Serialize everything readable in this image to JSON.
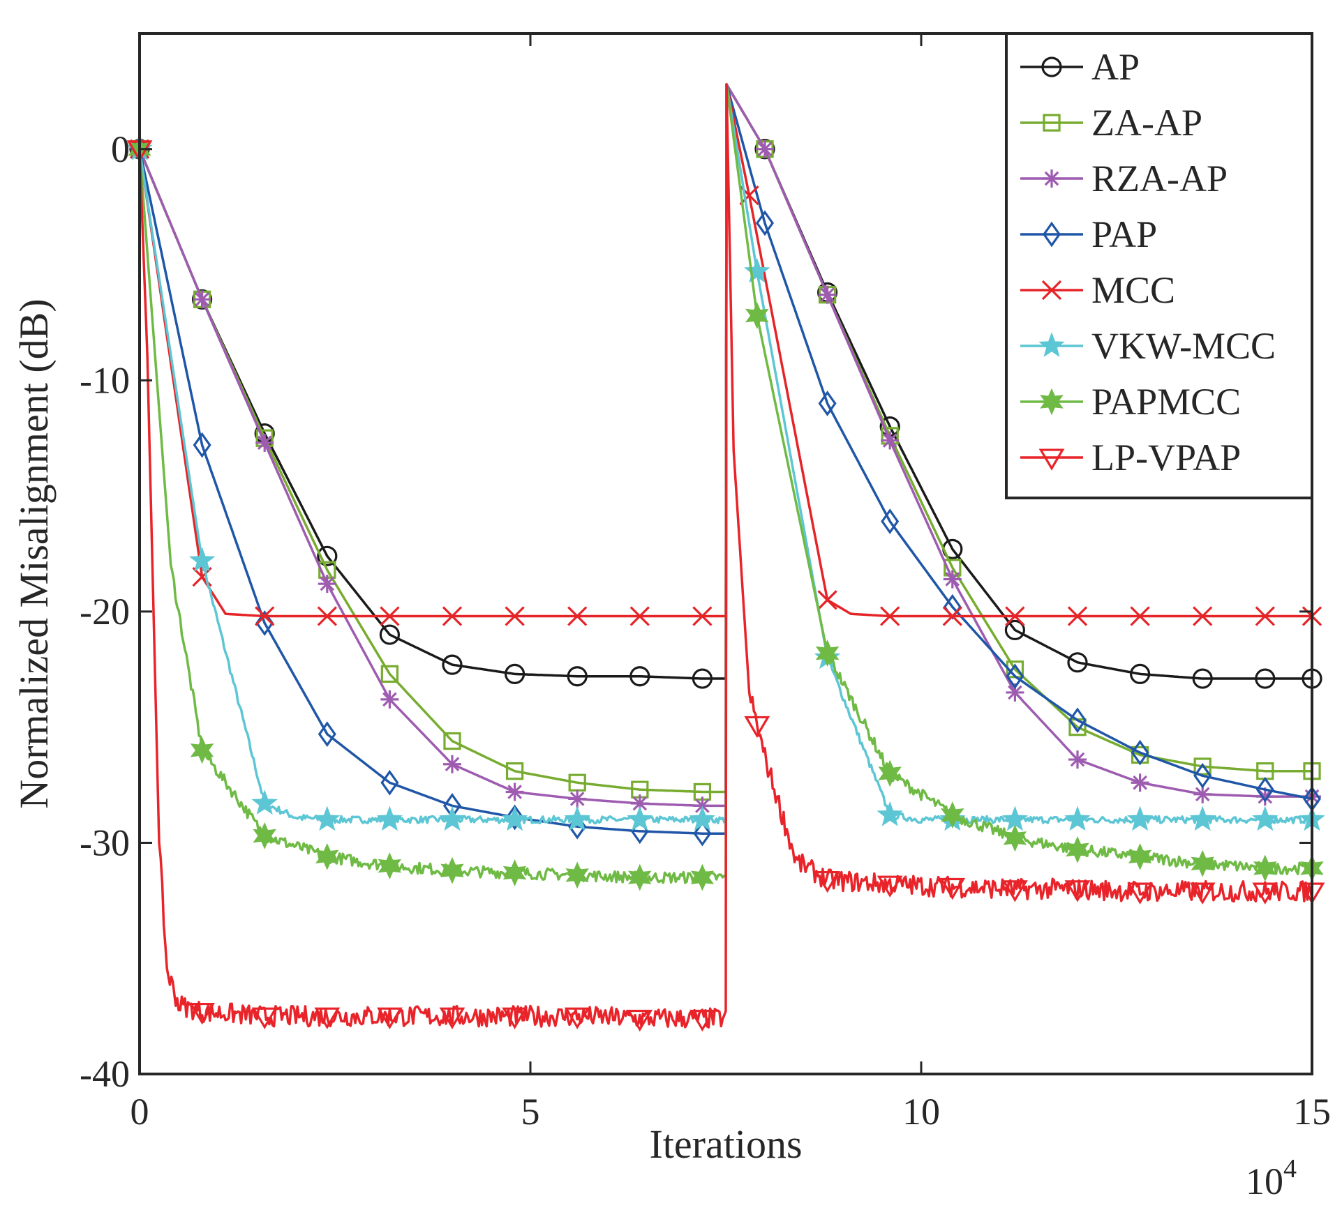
{
  "chart_data": {
    "type": "line",
    "title": "",
    "xlabel": "Iterations",
    "ylabel": "Normalized Misalignment (dB)",
    "x_exponent_base": "10",
    "x_exponent_power": "4",
    "xlim": [
      0,
      15
    ],
    "ylim": [
      -40,
      5
    ],
    "xticks": [
      0,
      5,
      10,
      15
    ],
    "xtick_labels": [
      "0",
      "5",
      "10",
      "15"
    ],
    "yticks": [
      0,
      -10,
      -20,
      -30,
      -40
    ],
    "ytick_labels": [
      "0",
      "-10",
      "-20",
      "-30",
      "-40"
    ],
    "grid": false,
    "legend_position": "top-right",
    "series": [
      {
        "name": "AP",
        "color": "#1a1a1a",
        "marker": "circle",
        "x": [
          0,
          0.8,
          1.6,
          2.4,
          3.2,
          4.0,
          4.8,
          5.6,
          6.4,
          7.2,
          7.5,
          7.51,
          8.0,
          8.8,
          9.6,
          10.4,
          11.2,
          12.0,
          12.8,
          13.6,
          14.4,
          15.0
        ],
        "y": [
          0,
          -6.5,
          -12.3,
          -17.6,
          -21.0,
          -22.3,
          -22.7,
          -22.8,
          -22.8,
          -22.9,
          -22.9,
          2.8,
          0,
          -6.2,
          -12.0,
          -17.3,
          -20.8,
          -22.2,
          -22.7,
          -22.9,
          -22.9,
          -22.9
        ],
        "marker_x": [
          0,
          0.8,
          1.6,
          2.4,
          3.2,
          4.0,
          4.8,
          5.6,
          6.4,
          7.2,
          8.0,
          8.8,
          9.6,
          10.4,
          11.2,
          12.0,
          12.8,
          13.6,
          14.4,
          15.0
        ],
        "noise": 0
      },
      {
        "name": "ZA-AP",
        "color": "#77ac30",
        "marker": "square",
        "x": [
          0,
          0.8,
          1.6,
          2.4,
          3.2,
          4.0,
          4.8,
          5.6,
          6.4,
          7.2,
          7.5,
          7.51,
          8.0,
          8.8,
          9.6,
          10.4,
          11.2,
          12.0,
          12.8,
          13.6,
          14.4,
          15.0
        ],
        "y": [
          0,
          -6.5,
          -12.5,
          -18.2,
          -22.7,
          -25.6,
          -26.9,
          -27.4,
          -27.7,
          -27.8,
          -27.8,
          2.8,
          0,
          -6.3,
          -12.4,
          -18.1,
          -22.5,
          -25.0,
          -26.2,
          -26.7,
          -26.9,
          -26.9
        ],
        "marker_x": [
          0,
          0.8,
          1.6,
          2.4,
          3.2,
          4.0,
          4.8,
          5.6,
          6.4,
          7.2,
          8.0,
          8.8,
          9.6,
          10.4,
          11.2,
          12.0,
          12.8,
          13.6,
          14.4,
          15.0
        ],
        "noise": 0
      },
      {
        "name": "RZA-AP",
        "color": "#9e5cb0",
        "marker": "asterisk",
        "x": [
          0,
          0.8,
          1.6,
          2.4,
          3.2,
          4.0,
          4.8,
          5.6,
          6.4,
          7.2,
          7.5,
          7.51,
          8.0,
          8.8,
          9.6,
          10.4,
          11.2,
          12.0,
          12.8,
          13.6,
          14.4,
          15.0
        ],
        "y": [
          0,
          -6.5,
          -12.7,
          -18.8,
          -23.8,
          -26.6,
          -27.8,
          -28.1,
          -28.3,
          -28.4,
          -28.4,
          2.8,
          0,
          -6.3,
          -12.6,
          -18.6,
          -23.5,
          -26.4,
          -27.4,
          -27.9,
          -28.0,
          -28.0
        ],
        "marker_x": [
          0,
          0.8,
          1.6,
          2.4,
          3.2,
          4.0,
          4.8,
          5.6,
          6.4,
          7.2,
          8.0,
          8.8,
          9.6,
          10.4,
          11.2,
          12.0,
          12.8,
          13.6,
          14.4,
          15.0
        ],
        "noise": 0
      },
      {
        "name": "PAP",
        "color": "#1f56a7",
        "marker": "diamond",
        "x": [
          0,
          0.8,
          1.6,
          2.4,
          3.2,
          4.0,
          4.8,
          5.6,
          6.4,
          7.2,
          7.5,
          7.51,
          8.0,
          8.8,
          9.6,
          10.4,
          11.2,
          12.0,
          12.8,
          13.6,
          14.4,
          15.0
        ],
        "y": [
          0,
          -12.8,
          -20.5,
          -25.3,
          -27.4,
          -28.4,
          -28.9,
          -29.3,
          -29.5,
          -29.6,
          -29.6,
          2.8,
          -3.2,
          -11.0,
          -16.1,
          -19.8,
          -22.8,
          -24.7,
          -26.1,
          -27.1,
          -27.7,
          -28.1
        ],
        "marker_x": [
          0,
          0.8,
          1.6,
          2.4,
          3.2,
          4.0,
          4.8,
          5.6,
          6.4,
          7.2,
          8.0,
          8.8,
          9.6,
          10.4,
          11.2,
          12.0,
          12.8,
          13.6,
          14.4,
          15.0
        ],
        "noise": 0
      },
      {
        "name": "MCC",
        "color": "#e52428",
        "marker": "x",
        "x": [
          0,
          0.8,
          1.1,
          1.6,
          2.4,
          3.2,
          4.0,
          4.8,
          5.6,
          6.4,
          7.2,
          7.5,
          7.51,
          7.8,
          8.8,
          9.1,
          9.6,
          10.4,
          11.2,
          12.0,
          12.8,
          13.6,
          14.4,
          15.0
        ],
        "y": [
          0,
          -18.5,
          -20.1,
          -20.2,
          -20.2,
          -20.2,
          -20.2,
          -20.2,
          -20.2,
          -20.2,
          -20.2,
          -20.2,
          2.8,
          -2.0,
          -19.5,
          -20.1,
          -20.2,
          -20.2,
          -20.2,
          -20.2,
          -20.2,
          -20.2,
          -20.2,
          -20.2
        ],
        "marker_x": [
          0,
          0.8,
          1.6,
          2.4,
          3.2,
          4.0,
          4.8,
          5.6,
          6.4,
          7.2,
          7.8,
          8.8,
          9.6,
          10.4,
          11.2,
          12.0,
          12.8,
          13.6,
          14.4,
          15.0
        ],
        "noise": 0
      },
      {
        "name": "VKW-MCC",
        "color": "#5cc6d4",
        "marker": "star5",
        "x": [
          0,
          0.8,
          1.6,
          2.0,
          2.4,
          3.2,
          4.0,
          4.8,
          5.6,
          6.4,
          7.2,
          7.5,
          7.51,
          7.9,
          8.8,
          9.6,
          10.0,
          10.4,
          11.2,
          12.0,
          12.8,
          13.6,
          14.4,
          15.0
        ],
        "y": [
          0,
          -17.8,
          -28.3,
          -28.9,
          -29.0,
          -29.0,
          -29.0,
          -29.0,
          -29.0,
          -29.0,
          -29.0,
          -29.0,
          2.8,
          -5.3,
          -22.0,
          -28.8,
          -29.0,
          -29.0,
          -29.0,
          -29.0,
          -29.0,
          -29.0,
          -29.0,
          -29.0
        ],
        "marker_x": [
          0,
          0.8,
          1.6,
          2.4,
          3.2,
          4.0,
          4.8,
          5.6,
          6.4,
          7.2,
          7.9,
          8.8,
          9.6,
          10.4,
          11.2,
          12.0,
          12.8,
          13.6,
          14.4,
          15.0
        ],
        "noise": 0.15
      },
      {
        "name": "PAPMCC",
        "color": "#6fba45",
        "marker": "star6",
        "x": [
          0,
          0.4,
          0.8,
          1.6,
          2.4,
          3.2,
          4.0,
          4.8,
          5.6,
          6.4,
          7.2,
          7.5,
          7.51,
          7.9,
          8.8,
          9.6,
          10.4,
          11.2,
          12.0,
          12.8,
          13.6,
          14.4,
          15.0
        ],
        "y": [
          0,
          -18.0,
          -26.0,
          -29.7,
          -30.6,
          -31.0,
          -31.2,
          -31.3,
          -31.4,
          -31.5,
          -31.5,
          -31.5,
          2.8,
          -7.2,
          -21.8,
          -27.0,
          -28.8,
          -29.8,
          -30.3,
          -30.6,
          -30.9,
          -31.1,
          -31.1
        ],
        "marker_x": [
          0,
          0.8,
          1.6,
          2.4,
          3.2,
          4.0,
          4.8,
          5.6,
          6.4,
          7.2,
          7.9,
          8.8,
          9.6,
          10.4,
          11.2,
          12.0,
          12.8,
          13.6,
          14.4,
          15.0
        ],
        "noise": 0.25
      },
      {
        "name": "LP-VPAP",
        "color": "#e8242a",
        "marker": "triangle-down",
        "x": [
          0,
          0.1,
          0.25,
          0.35,
          0.5,
          0.8,
          1.6,
          2.4,
          3.2,
          4.0,
          4.8,
          5.6,
          6.4,
          7.2,
          7.5,
          7.51,
          7.6,
          7.8,
          8.0,
          8.4,
          8.8,
          9.6,
          10.4,
          11.2,
          12.0,
          12.8,
          13.6,
          14.4,
          15.0
        ],
        "y": [
          0,
          -9.0,
          -30.0,
          -35.5,
          -37.0,
          -37.3,
          -37.5,
          -37.5,
          -37.5,
          -37.5,
          -37.5,
          -37.5,
          -37.6,
          -37.6,
          -37.6,
          2.8,
          -13.0,
          -23.5,
          -26.3,
          -30.8,
          -31.6,
          -31.8,
          -31.9,
          -32.0,
          -32.0,
          -32.1,
          -32.1,
          -32.1,
          -32.1
        ],
        "marker_x": [
          0,
          0.8,
          1.6,
          2.4,
          3.2,
          4.0,
          4.8,
          5.6,
          6.4,
          7.2,
          7.9,
          8.8,
          9.6,
          10.4,
          11.2,
          12.0,
          12.8,
          13.6,
          14.4,
          15.0
        ],
        "noise": 0.45
      }
    ]
  }
}
